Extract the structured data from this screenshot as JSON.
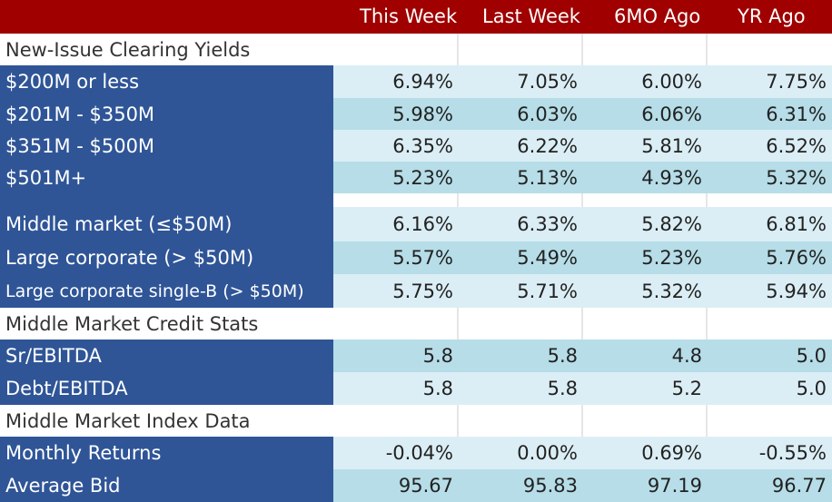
{
  "headers": [
    "This Week",
    "Last Week",
    "6MO Ago",
    "YR Ago"
  ],
  "sections": {
    "new_issue": "New-Issue Clearing Yields",
    "credit_stats": "Middle Market Credit Stats",
    "index_data": "Middle Market Index Data"
  },
  "rows": {
    "r1": {
      "label": "$200M or less",
      "values": [
        "6.94%",
        "7.05%",
        "6.00%",
        "7.75%"
      ]
    },
    "r2": {
      "label": "$201M - $350M",
      "values": [
        "5.98%",
        "6.03%",
        "6.06%",
        "6.31%"
      ]
    },
    "r3": {
      "label": "$351M - $500M",
      "values": [
        "6.35%",
        "6.22%",
        "5.81%",
        "6.52%"
      ]
    },
    "r4": {
      "label": "$501M+",
      "values": [
        "5.23%",
        "5.13%",
        "4.93%",
        "5.32%"
      ]
    },
    "r5": {
      "label": "Middle market (≤$50M)",
      "values": [
        "6.16%",
        "6.33%",
        "5.82%",
        "6.81%"
      ]
    },
    "r6": {
      "label": "Large corporate (> $50M)",
      "values": [
        "5.57%",
        "5.49%",
        "5.23%",
        "5.76%"
      ]
    },
    "r7": {
      "label": "Large corporate single-B (> $50M)",
      "values": [
        "5.75%",
        "5.71%",
        "5.32%",
        "5.94%"
      ]
    },
    "r8": {
      "label": "Sr/EBITDA",
      "values": [
        "5.8",
        "5.8",
        "4.8",
        "5.0"
      ]
    },
    "r9": {
      "label": "Debt/EBITDA",
      "values": [
        "5.8",
        "5.8",
        "5.2",
        "5.0"
      ]
    },
    "r10": {
      "label": "Monthly Returns",
      "values": [
        "-0.04%",
        "0.00%",
        "0.69%",
        "-0.55%"
      ]
    },
    "r11": {
      "label": "Average Bid",
      "values": [
        "95.67",
        "95.83",
        "97.19",
        "96.77"
      ]
    }
  }
}
